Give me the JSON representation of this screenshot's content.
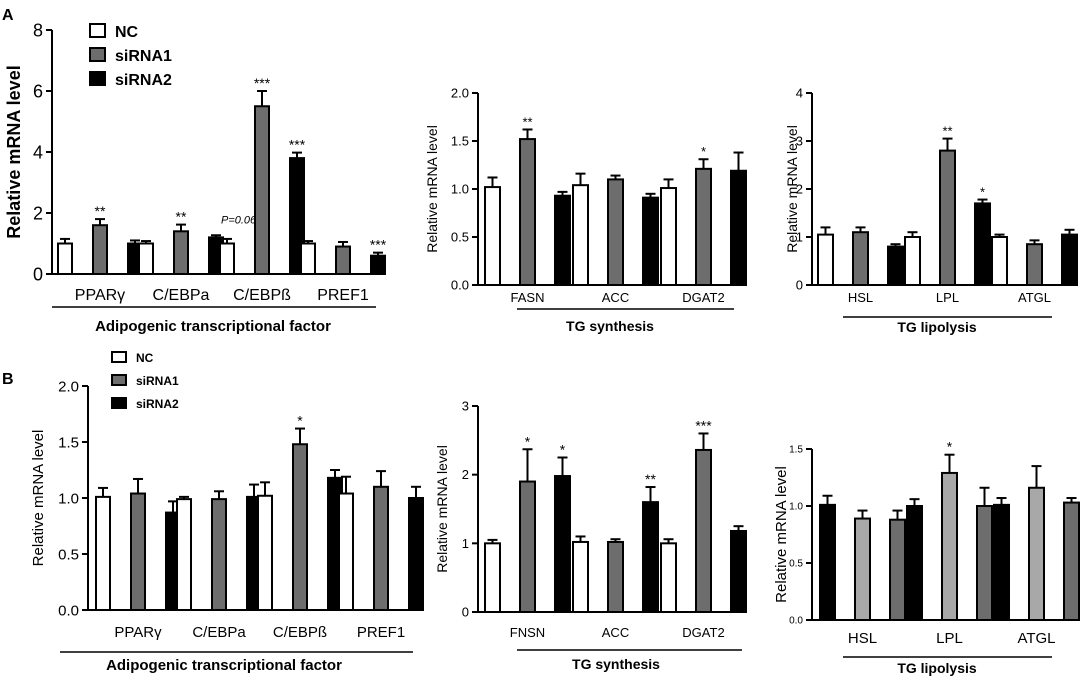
{
  "colors": {
    "white": "#ffffff",
    "grey": "#6d6d6d",
    "black": "#000000",
    "lightgrey": "#a8a8a8"
  },
  "chart_data": [
    {
      "id": "A1",
      "panel_label": "A",
      "type": "bar",
      "ylabel": "Relative mRNA level",
      "ylim": [
        0,
        8
      ],
      "yticks": [
        "0",
        "2",
        "4",
        "6",
        "8"
      ],
      "categories": [
        "PPARγ",
        "C/EBPa",
        "C/EBPß",
        "PREF1"
      ],
      "group_label": "Adipogenic transcriptional factor",
      "legend": [
        "NC",
        "siRNA1",
        "siRNA2"
      ],
      "series": [
        {
          "name": "NC",
          "color": "white",
          "values": [
            1.0,
            1.0,
            1.0,
            1.0
          ],
          "errors": [
            0.15,
            0.08,
            0.15,
            0.08
          ],
          "annotations": [
            "",
            "",
            "",
            ""
          ]
        },
        {
          "name": "siRNA1",
          "color": "grey",
          "values": [
            1.6,
            1.4,
            5.5,
            0.9
          ],
          "errors": [
            0.2,
            0.22,
            0.5,
            0.15
          ],
          "annotations": [
            "**",
            "**",
            "***",
            ""
          ]
        },
        {
          "name": "siRNA2",
          "color": "black",
          "values": [
            1.0,
            1.2,
            3.8,
            0.6
          ],
          "errors": [
            0.1,
            0.07,
            0.18,
            0.1
          ],
          "annotations": [
            "",
            "P=0.06",
            "***",
            "***"
          ]
        }
      ]
    },
    {
      "id": "A2",
      "type": "bar",
      "ylabel": "Relative mRNA level",
      "ylim": [
        0,
        2
      ],
      "yticks": [
        "0.0",
        "0.5",
        "1.0",
        "1.5",
        "2.0"
      ],
      "categories": [
        "FASN",
        "ACC",
        "DGAT2"
      ],
      "group_label": "TG synthesis",
      "series": [
        {
          "name": "NC",
          "color": "white",
          "values": [
            1.02,
            1.04,
            1.01
          ],
          "errors": [
            0.1,
            0.12,
            0.09
          ],
          "annotations": [
            "",
            "",
            ""
          ]
        },
        {
          "name": "siRNA1",
          "color": "grey",
          "values": [
            1.52,
            1.1,
            1.21
          ],
          "errors": [
            0.1,
            0.04,
            0.1
          ],
          "annotations": [
            "**",
            "",
            "*"
          ]
        },
        {
          "name": "siRNA2",
          "color": "black",
          "values": [
            0.93,
            0.91,
            1.19
          ],
          "errors": [
            0.04,
            0.04,
            0.19
          ],
          "annotations": [
            "",
            "",
            ""
          ]
        }
      ]
    },
    {
      "id": "A3",
      "type": "bar",
      "ylabel": "Relative mRNA level",
      "ylim": [
        0,
        4
      ],
      "yticks": [
        "0",
        "1",
        "2",
        "3",
        "4"
      ],
      "categories": [
        "HSL",
        "LPL",
        "ATGL"
      ],
      "group_label": "TG lipolysis",
      "series": [
        {
          "name": "NC",
          "color": "white",
          "values": [
            1.05,
            1.0,
            1.0
          ],
          "errors": [
            0.15,
            0.1,
            0.05
          ],
          "annotations": [
            "",
            "",
            ""
          ]
        },
        {
          "name": "siRNA1",
          "color": "grey",
          "values": [
            1.1,
            2.8,
            0.85
          ],
          "errors": [
            0.1,
            0.25,
            0.08
          ],
          "annotations": [
            "",
            "**",
            ""
          ]
        },
        {
          "name": "siRNA2",
          "color": "black",
          "values": [
            0.8,
            1.7,
            1.05
          ],
          "errors": [
            0.05,
            0.08,
            0.1
          ],
          "annotations": [
            "",
            "*",
            ""
          ]
        }
      ]
    },
    {
      "id": "B1",
      "panel_label": "B",
      "type": "bar",
      "ylabel": "Relative mRNA level",
      "ylim": [
        0,
        2
      ],
      "yticks": [
        "0.0",
        "0.5",
        "1.0",
        "1.5",
        "2.0"
      ],
      "categories": [
        "PPARγ",
        "C/EBPa",
        "C/EBPß",
        "PREF1"
      ],
      "group_label": "Adipogenic transcriptional factor",
      "legend": [
        "NC",
        "siRNA1",
        "siRNA2"
      ],
      "series": [
        {
          "name": "NC",
          "color": "white",
          "values": [
            1.01,
            0.99,
            1.02,
            1.04
          ],
          "errors": [
            0.08,
            0.02,
            0.12,
            0.15
          ],
          "annotations": [
            "",
            "",
            "",
            ""
          ]
        },
        {
          "name": "siRNA1",
          "color": "grey",
          "values": [
            1.04,
            0.99,
            1.48,
            1.1
          ],
          "errors": [
            0.13,
            0.07,
            0.14,
            0.14
          ],
          "annotations": [
            "",
            "",
            "*",
            ""
          ]
        },
        {
          "name": "siRNA2",
          "color": "black",
          "values": [
            0.87,
            1.01,
            1.18,
            1.0
          ],
          "errors": [
            0.1,
            0.11,
            0.07,
            0.1
          ],
          "annotations": [
            "",
            "",
            "",
            ""
          ]
        }
      ]
    },
    {
      "id": "B2",
      "type": "bar",
      "ylabel": "Relative mRNA level",
      "ylim": [
        0,
        3
      ],
      "yticks": [
        "0",
        "1",
        "2",
        "3"
      ],
      "categories": [
        "FNSN",
        "ACC",
        "DGAT2"
      ],
      "group_label": "TG synthesis",
      "series": [
        {
          "name": "NC",
          "color": "white",
          "values": [
            1.0,
            1.02,
            1.0
          ],
          "errors": [
            0.05,
            0.08,
            0.06
          ],
          "annotations": [
            "",
            "",
            ""
          ]
        },
        {
          "name": "siRNA1",
          "color": "grey",
          "values": [
            1.9,
            1.02,
            2.36
          ],
          "errors": [
            0.47,
            0.04,
            0.24
          ],
          "annotations": [
            "*",
            "",
            "***"
          ]
        },
        {
          "name": "siRNA2",
          "color": "black",
          "values": [
            1.98,
            1.6,
            1.18
          ],
          "errors": [
            0.27,
            0.22,
            0.07
          ],
          "annotations": [
            "*",
            "**",
            ""
          ]
        }
      ]
    },
    {
      "id": "B3",
      "type": "bar",
      "ylabel": "Relative mRNA level",
      "ylim": [
        0,
        1.5
      ],
      "yticks": [
        "0.0",
        "0.5",
        "1.0",
        "1.5"
      ],
      "categories": [
        "HSL",
        "LPL",
        "ATGL"
      ],
      "group_label": "TG lipolysis",
      "series": [
        {
          "name": "NC",
          "color": "black",
          "values": [
            1.01,
            1.0,
            1.01
          ],
          "errors": [
            0.08,
            0.06,
            0.06
          ],
          "annotations": [
            "",
            "",
            ""
          ]
        },
        {
          "name": "siRNA1",
          "color": "lightgrey",
          "values": [
            0.89,
            1.29,
            1.16
          ],
          "errors": [
            0.07,
            0.16,
            0.19
          ],
          "annotations": [
            "",
            "*",
            ""
          ]
        },
        {
          "name": "siRNA2",
          "color": "grey",
          "values": [
            0.88,
            1.0,
            1.03
          ],
          "errors": [
            0.08,
            0.16,
            0.04
          ],
          "annotations": [
            "",
            "",
            ""
          ]
        }
      ]
    }
  ]
}
